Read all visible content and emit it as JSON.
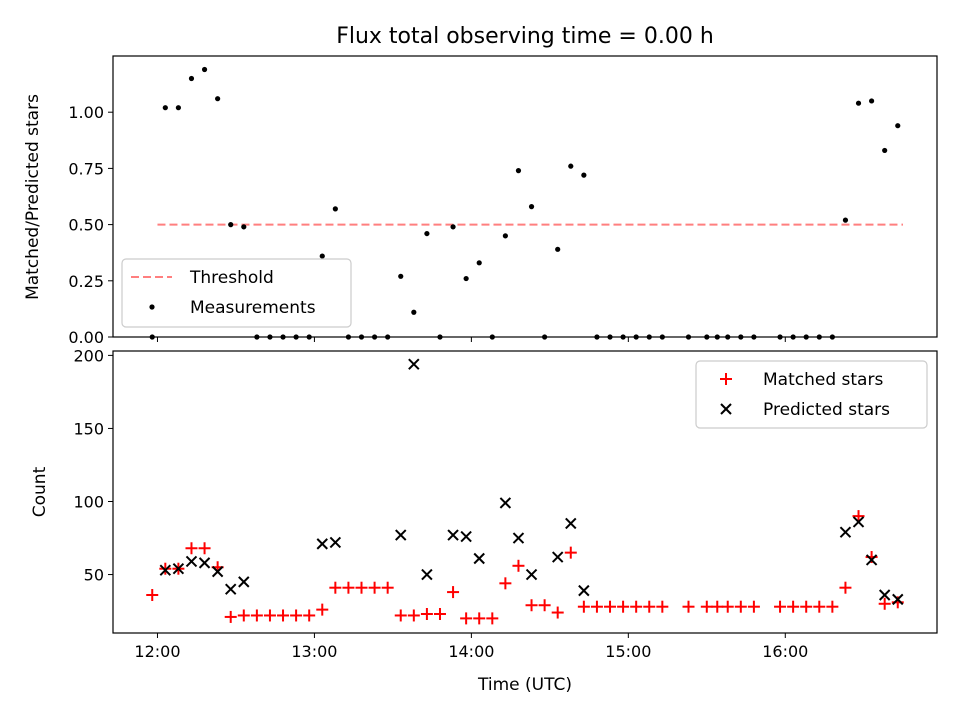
{
  "chart_data": [
    {
      "type": "scatter",
      "title": "Flux total observing time = 0.00 h",
      "xlabel": "",
      "ylabel": "Matched/Predicted stars",
      "xlim": [
        "11:43",
        "16:58"
      ],
      "ylim": [
        0,
        1.25
      ],
      "yticks": [
        "0.00",
        "0.25",
        "0.50",
        "0.75",
        "1.00"
      ],
      "threshold": {
        "name": "Threshold",
        "value": 0.5,
        "from": "12:00",
        "to": "16:45",
        "color": "#ff7f7f"
      },
      "series": [
        {
          "name": "Measurements",
          "color": "#000000",
          "points": [
            [
              "11:58",
              0.0
            ],
            [
              "12:03",
              1.02
            ],
            [
              "12:08",
              1.02
            ],
            [
              "12:13",
              1.15
            ],
            [
              "12:18",
              1.19
            ],
            [
              "12:23",
              1.06
            ],
            [
              "12:28",
              0.5
            ],
            [
              "12:33",
              0.49
            ],
            [
              "12:38",
              0.0
            ],
            [
              "12:43",
              0.0
            ],
            [
              "12:48",
              0.0
            ],
            [
              "12:53",
              0.0
            ],
            [
              "12:58",
              0.0
            ],
            [
              "13:03",
              0.36
            ],
            [
              "13:08",
              0.57
            ],
            [
              "13:13",
              0.0
            ],
            [
              "13:18",
              0.0
            ],
            [
              "13:23",
              0.0
            ],
            [
              "13:28",
              0.0
            ],
            [
              "13:33",
              0.27
            ],
            [
              "13:38",
              0.11
            ],
            [
              "13:43",
              0.46
            ],
            [
              "13:48",
              0.0
            ],
            [
              "13:53",
              0.49
            ],
            [
              "13:58",
              0.26
            ],
            [
              "14:03",
              0.33
            ],
            [
              "14:08",
              0.0
            ],
            [
              "14:13",
              0.45
            ],
            [
              "14:18",
              0.74
            ],
            [
              "14:23",
              0.58
            ],
            [
              "14:28",
              0.0
            ],
            [
              "14:33",
              0.39
            ],
            [
              "14:38",
              0.76
            ],
            [
              "14:43",
              0.72
            ],
            [
              "14:48",
              0.0
            ],
            [
              "14:53",
              0.0
            ],
            [
              "14:58",
              0.0
            ],
            [
              "15:03",
              0.0
            ],
            [
              "15:08",
              0.0
            ],
            [
              "15:13",
              0.0
            ],
            [
              "15:23",
              0.0
            ],
            [
              "15:30",
              0.0
            ],
            [
              "15:34",
              0.0
            ],
            [
              "15:38",
              0.0
            ],
            [
              "15:43",
              0.0
            ],
            [
              "15:48",
              0.0
            ],
            [
              "15:58",
              0.0
            ],
            [
              "16:03",
              0.0
            ],
            [
              "16:08",
              0.0
            ],
            [
              "16:13",
              0.0
            ],
            [
              "16:18",
              0.0
            ],
            [
              "16:23",
              0.52
            ],
            [
              "16:28",
              1.04
            ],
            [
              "16:33",
              1.05
            ],
            [
              "16:38",
              0.83
            ],
            [
              "16:43",
              0.94
            ]
          ]
        }
      ],
      "legend": "lower-left"
    },
    {
      "type": "scatter",
      "title": "",
      "xlabel": "Time (UTC)",
      "ylabel": "Count",
      "xlim": [
        "11:43",
        "16:58"
      ],
      "ylim": [
        10,
        203
      ],
      "xticks": [
        "12:00",
        "13:00",
        "14:00",
        "15:00",
        "16:00"
      ],
      "yticks": [
        "50",
        "100",
        "150",
        "200"
      ],
      "series": [
        {
          "name": "Matched stars",
          "marker": "plus",
          "color": "#ff0000",
          "points": [
            [
              "11:58",
              36
            ],
            [
              "12:03",
              54
            ],
            [
              "12:08",
              54
            ],
            [
              "12:13",
              68
            ],
            [
              "12:18",
              68
            ],
            [
              "12:23",
              55
            ],
            [
              "12:28",
              21
            ],
            [
              "12:33",
              22
            ],
            [
              "12:38",
              22
            ],
            [
              "12:43",
              22
            ],
            [
              "12:48",
              22
            ],
            [
              "12:53",
              22
            ],
            [
              "12:58",
              22
            ],
            [
              "13:03",
              26
            ],
            [
              "13:08",
              41
            ],
            [
              "13:13",
              41
            ],
            [
              "13:18",
              41
            ],
            [
              "13:23",
              41
            ],
            [
              "13:28",
              41
            ],
            [
              "13:33",
              22
            ],
            [
              "13:38",
              22
            ],
            [
              "13:43",
              23
            ],
            [
              "13:48",
              23
            ],
            [
              "13:53",
              38
            ],
            [
              "13:58",
              20
            ],
            [
              "14:03",
              20
            ],
            [
              "14:08",
              20
            ],
            [
              "14:13",
              44
            ],
            [
              "14:18",
              56
            ],
            [
              "14:23",
              29
            ],
            [
              "14:28",
              29
            ],
            [
              "14:33",
              24
            ],
            [
              "14:38",
              65
            ],
            [
              "14:43",
              28
            ],
            [
              "14:48",
              28
            ],
            [
              "14:53",
              28
            ],
            [
              "14:58",
              28
            ],
            [
              "15:03",
              28
            ],
            [
              "15:08",
              28
            ],
            [
              "15:13",
              28
            ],
            [
              "15:23",
              28
            ],
            [
              "15:30",
              28
            ],
            [
              "15:34",
              28
            ],
            [
              "15:38",
              28
            ],
            [
              "15:43",
              28
            ],
            [
              "15:48",
              28
            ],
            [
              "15:58",
              28
            ],
            [
              "16:03",
              28
            ],
            [
              "16:08",
              28
            ],
            [
              "16:13",
              28
            ],
            [
              "16:18",
              28
            ],
            [
              "16:23",
              41
            ],
            [
              "16:28",
              90
            ],
            [
              "16:33",
              62
            ],
            [
              "16:38",
              30
            ],
            [
              "16:43",
              31
            ]
          ]
        },
        {
          "name": "Predicted stars",
          "marker": "x",
          "color": "#000000",
          "points": [
            [
              "12:03",
              53
            ],
            [
              "12:08",
              54
            ],
            [
              "12:13",
              59
            ],
            [
              "12:18",
              58
            ],
            [
              "12:23",
              52
            ],
            [
              "12:28",
              40
            ],
            [
              "12:33",
              45
            ],
            [
              "13:03",
              71
            ],
            [
              "13:08",
              72
            ],
            [
              "13:33",
              77
            ],
            [
              "13:38",
              194
            ],
            [
              "13:43",
              50
            ],
            [
              "13:53",
              77
            ],
            [
              "13:58",
              76
            ],
            [
              "14:03",
              61
            ],
            [
              "14:13",
              99
            ],
            [
              "14:18",
              75
            ],
            [
              "14:23",
              50
            ],
            [
              "14:33",
              62
            ],
            [
              "14:38",
              85
            ],
            [
              "14:43",
              39
            ],
            [
              "16:23",
              79
            ],
            [
              "16:28",
              86
            ],
            [
              "16:33",
              60
            ],
            [
              "16:38",
              36
            ],
            [
              "16:43",
              33
            ]
          ]
        }
      ],
      "legend": "top-right"
    }
  ]
}
